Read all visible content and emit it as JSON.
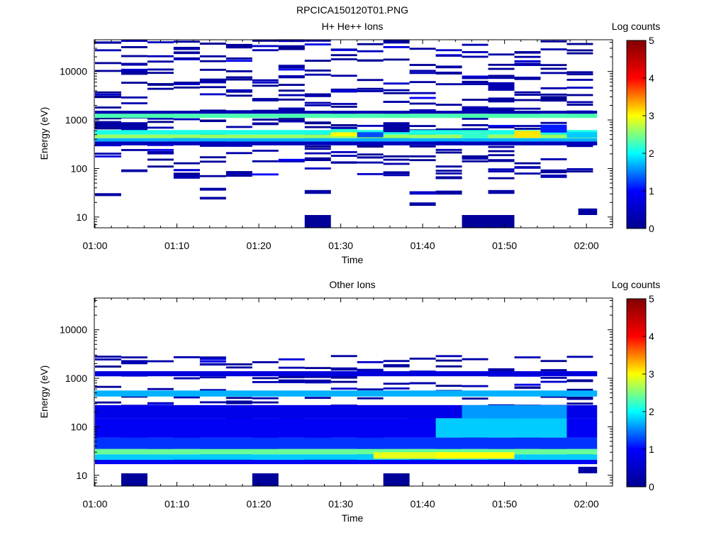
{
  "figure_title": "RPCICA150120T01.PNG",
  "colormap": [
    "#00008f",
    "#0000ff",
    "#00ffff",
    "#ffff00",
    "#ff0000",
    "#800000"
  ],
  "chart_data": [
    {
      "type": "heatmap",
      "title": "H+ He++ Ions",
      "xlabel": "Time",
      "ylabel": "Energy (eV)",
      "x_ticks": [
        "01:00",
        "01:10",
        "01:20",
        "01:30",
        "01:40",
        "01:50",
        "02:00"
      ],
      "y_ticks": [
        "10",
        "100",
        "1000",
        "10000"
      ],
      "y_scale": "log",
      "ylim": [
        6,
        45000
      ],
      "colorbar": {
        "label": "Log counts",
        "ticks": [
          "0",
          "1",
          "2",
          "3",
          "4",
          "5"
        ],
        "range": [
          0,
          5
        ]
      },
      "time_bins_start_min": [
        0,
        3.2,
        6.4,
        9.6,
        12.8,
        16,
        19.2,
        22.4,
        25.6,
        28.8,
        32,
        35.2,
        38.4,
        41.6,
        44.8,
        48,
        51.2,
        54.4,
        57.6
      ],
      "time_bin_width_min": 3.2,
      "bands": [
        {
          "t": [
            0,
            61.3
          ],
          "e": [
            1100,
            1350
          ],
          "v": 2.3
        },
        {
          "t": [
            0,
            61.3
          ],
          "e": [
            500,
            620
          ],
          "v": 2.1
        },
        {
          "t": [
            0,
            61.3
          ],
          "e": [
            420,
            500
          ],
          "v": 2.6
        },
        {
          "t": [
            0,
            61.3
          ],
          "e": [
            360,
            420
          ],
          "v": 1.7
        },
        {
          "t": [
            0,
            61.3
          ],
          "e": [
            1350,
            1550
          ],
          "v": 0.3
        },
        {
          "t": [
            0,
            61.3
          ],
          "e": [
            300,
            360
          ],
          "v": 0.4
        },
        {
          "t": [
            28.8,
            32
          ],
          "e": [
            460,
            560
          ],
          "v": 3.0
        },
        {
          "t": [
            28.8,
            32
          ],
          "e": [
            560,
            650
          ],
          "v": 2.2
        },
        {
          "t": [
            32,
            35.2
          ],
          "e": [
            440,
            560
          ],
          "v": 1.3
        },
        {
          "t": [
            35.2,
            38.4
          ],
          "e": [
            560,
            900
          ],
          "v": 0.2
        },
        {
          "t": [
            44.8,
            48
          ],
          "e": [
            420,
            600
          ],
          "v": 2.2
        },
        {
          "t": [
            51.2,
            54.4
          ],
          "e": [
            430,
            600
          ],
          "v": 3.1
        },
        {
          "t": [
            54.4,
            57.6
          ],
          "e": [
            550,
            800
          ],
          "v": 1.1
        },
        {
          "t": [
            57.6,
            61.3
          ],
          "e": [
            430,
            560
          ],
          "v": 1.8
        },
        {
          "t": [
            0,
            3.2
          ],
          "e": [
            700,
            950
          ],
          "v": 0.2
        },
        {
          "t": [
            3.2,
            6.4
          ],
          "e": [
            650,
            900
          ],
          "v": 0.2
        },
        {
          "t": [
            22.4,
            25.6
          ],
          "e": [
            1550,
            1800
          ],
          "v": 0.3
        },
        {
          "t": [
            44.8,
            48
          ],
          "e": [
            1550,
            1900
          ],
          "v": 0.3
        },
        {
          "t": [
            48,
            51.2
          ],
          "e": [
            2300,
            2900
          ],
          "v": 0.2
        },
        {
          "t": [
            48,
            51.2
          ],
          "e": [
            4000,
            6000
          ],
          "v": 0.3
        },
        {
          "t": [
            25.6,
            28.8
          ],
          "e": [
            6,
            11
          ],
          "v": 0.1
        },
        {
          "t": [
            44.8,
            51.2
          ],
          "e": [
            6,
            11
          ],
          "v": 0.1
        },
        {
          "t": [
            59,
            61.3
          ],
          "e": [
            11,
            15
          ],
          "v": 0.2
        },
        {
          "t": [
            0,
            3.2
          ],
          "e": [
            27,
            31
          ],
          "v": 0.2
        },
        {
          "t": [
            12.8,
            16
          ],
          "e": [
            35,
            40
          ],
          "v": 0.2
        },
        {
          "t": [
            12.8,
            16
          ],
          "e": [
            23,
            26
          ],
          "v": 0.2
        },
        {
          "t": [
            25.6,
            28.8
          ],
          "e": [
            30,
            36
          ],
          "v": 0.2
        },
        {
          "t": [
            38.4,
            41.6
          ],
          "e": [
            29,
            34
          ],
          "v": 0.5
        },
        {
          "t": [
            41.6,
            44.8
          ],
          "e": [
            29,
            35
          ],
          "v": 0.2
        },
        {
          "t": [
            48,
            51.2
          ],
          "e": [
            30,
            36
          ],
          "v": 0.2
        },
        {
          "t": [
            38.4,
            41.6
          ],
          "e": [
            17,
            20
          ],
          "v": 0.2
        }
      ],
      "scatter_seed": 7,
      "scatter_per_bin": 20,
      "scatter_e_range": [
        60,
        42000
      ]
    },
    {
      "type": "heatmap",
      "title": "Other Ions",
      "xlabel": "Time",
      "ylabel": "Energy (eV)",
      "x_ticks": [
        "01:00",
        "01:10",
        "01:20",
        "01:30",
        "01:40",
        "01:50",
        "02:00"
      ],
      "y_ticks": [
        "10",
        "100",
        "1000",
        "10000"
      ],
      "y_scale": "log",
      "ylim": [
        6,
        45000
      ],
      "colorbar": {
        "label": "Log counts",
        "ticks": [
          "0",
          "1",
          "2",
          "3",
          "4",
          "5"
        ],
        "range": [
          0,
          5
        ]
      },
      "time_bins_start_min": [
        0,
        3.2,
        6.4,
        9.6,
        12.8,
        16,
        19.2,
        22.4,
        25.6,
        28.8,
        32,
        35.2,
        38.4,
        41.6,
        44.8,
        48,
        51.2,
        54.4,
        57.6
      ],
      "time_bin_width_min": 3.2,
      "bands": [
        {
          "t": [
            0,
            61.3
          ],
          "e": [
            17,
            21
          ],
          "v": 0.9
        },
        {
          "t": [
            0,
            61.3
          ],
          "e": [
            21,
            27
          ],
          "v": 1.8
        },
        {
          "t": [
            0,
            61.3
          ],
          "e": [
            27,
            35
          ],
          "v": 2.4
        },
        {
          "t": [
            0,
            61.3
          ],
          "e": [
            35,
            60
          ],
          "v": 1.2
        },
        {
          "t": [
            0,
            61.3
          ],
          "e": [
            60,
            150
          ],
          "v": 0.9
        },
        {
          "t": [
            0,
            61.3
          ],
          "e": [
            150,
            280
          ],
          "v": 0.8
        },
        {
          "t": [
            0,
            61.3
          ],
          "e": [
            420,
            560
          ],
          "v": 1.7
        },
        {
          "t": [
            0,
            61.3
          ],
          "e": [
            1100,
            1400
          ],
          "v": 0.7
        },
        {
          "t": [
            34,
            44
          ],
          "e": [
            22,
            30
          ],
          "v": 2.9
        },
        {
          "t": [
            41.6,
            51.2
          ],
          "e": [
            22,
            30
          ],
          "v": 3.0
        },
        {
          "t": [
            41.6,
            57.6
          ],
          "e": [
            60,
            150
          ],
          "v": 1.8
        },
        {
          "t": [
            44.8,
            57.6
          ],
          "e": [
            150,
            280
          ],
          "v": 1.6
        },
        {
          "t": [
            3.2,
            6.4
          ],
          "e": [
            6,
            11
          ],
          "v": 0.1
        },
        {
          "t": [
            19.2,
            22.4
          ],
          "e": [
            6,
            11
          ],
          "v": 0.1
        },
        {
          "t": [
            35.2,
            38.4
          ],
          "e": [
            6,
            11
          ],
          "v": 0.1
        },
        {
          "t": [
            59,
            61.3
          ],
          "e": [
            11,
            15
          ],
          "v": 0.2
        }
      ],
      "scatter_seed": 31,
      "scatter_per_bin": 14,
      "scatter_e_range": [
        18,
        2800
      ]
    }
  ]
}
